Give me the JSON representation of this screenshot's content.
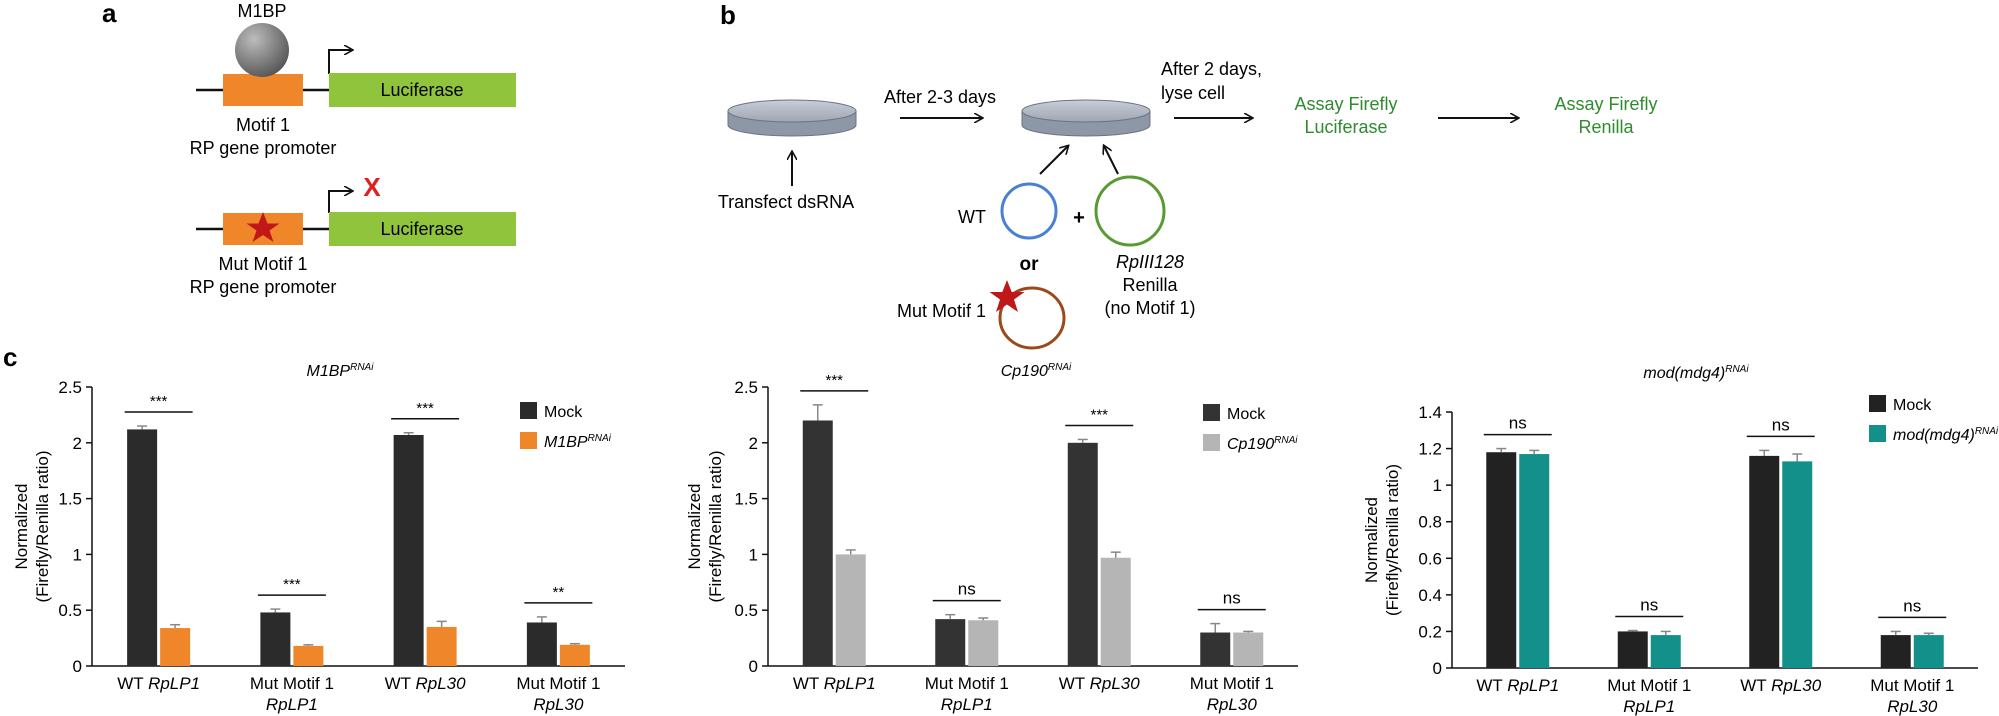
{
  "panel_labels": {
    "a": "a",
    "b": "b",
    "c": "c"
  },
  "panel_a": {
    "protein": "M1BP",
    "reporter": "Luciferase",
    "wt_label_line1": "Motif 1",
    "wt_label_line2": "RP gene promoter",
    "mut_label_line1": "Mut Motif 1",
    "mut_label_line2": "RP gene promoter",
    "blocked_mark": "X",
    "colors": {
      "promoter": "#f0862a",
      "luciferase": "#8fc43c",
      "protein": "#777777",
      "blocked": "#e02020",
      "star": "#c01818"
    }
  },
  "panel_b": {
    "step1": "After 2-3 days",
    "step2_line1": "After 2 days,",
    "step2_line2": "lyse cell",
    "assay1_line1": "Assay Firefly",
    "assay1_line2": "Luciferase",
    "assay2_line1": "Assay Firefly",
    "assay2_line2": "Renilla",
    "transfect": "Transfect dsRNA",
    "wt": "WT",
    "plus": "+",
    "or": "or",
    "mut": "Mut Motif 1",
    "renilla_line1": "RpIII128",
    "renilla_line2": "Renilla",
    "renilla_line3": "(no Motif 1)",
    "colors": {
      "assay_text": "#2e8b2e",
      "wt_plasmid": "#4a7fd6",
      "renilla_plasmid": "#5a9a35",
      "mut_plasmid": "#9a4a1a",
      "dish": "#9fa7b6"
    }
  },
  "chart_data": [
    {
      "type": "bar",
      "title_main": "M1BP",
      "title_sup": "RNAi",
      "ylabel_line1": "Normalized",
      "ylabel_line2": "(Firefly/Renilla ratio)",
      "ylim": [
        0,
        2.5
      ],
      "yticks": [
        "0",
        "0.5",
        "1",
        "1.5",
        "2",
        "2.5"
      ],
      "categories": [
        {
          "prefix": "WT ",
          "gene": "RpLP1",
          "line2": ""
        },
        {
          "prefix": "Mut Motif 1",
          "gene": "",
          "line2": "RpLP1"
        },
        {
          "prefix": "WT ",
          "gene": "RpL30",
          "line2": ""
        },
        {
          "prefix": "Mut Motif 1",
          "gene": "",
          "line2": "RpL30"
        }
      ],
      "series": [
        {
          "name": "Mock",
          "name_sup": "",
          "color": "#2b2b2b",
          "values": [
            2.12,
            0.48,
            2.07,
            0.39
          ],
          "errors": [
            0.03,
            0.03,
            0.02,
            0.05
          ]
        },
        {
          "name": "M1BP",
          "name_sup": "RNAi",
          "color": "#f0862a",
          "values": [
            0.34,
            0.18,
            0.35,
            0.19
          ],
          "errors": [
            0.03,
            0.01,
            0.05,
            0.01
          ]
        }
      ],
      "significance": [
        "***",
        "***",
        "***",
        "**"
      ],
      "legend_position": "top-right"
    },
    {
      "type": "bar",
      "title_main": "Cp190",
      "title_sup": "RNAi",
      "ylabel_line1": "Normalized",
      "ylabel_line2": "(Firefly/Renilla ratio)",
      "ylim": [
        0,
        2.5
      ],
      "yticks": [
        "0",
        "0.5",
        "1",
        "1.5",
        "2",
        "2.5"
      ],
      "categories": [
        {
          "prefix": "WT ",
          "gene": "RpLP1",
          "line2": ""
        },
        {
          "prefix": "Mut Motif 1",
          "gene": "",
          "line2": "RpLP1"
        },
        {
          "prefix": "WT ",
          "gene": "RpL30",
          "line2": ""
        },
        {
          "prefix": "Mut Motif 1",
          "gene": "",
          "line2": "RpL30"
        }
      ],
      "series": [
        {
          "name": "Mock",
          "name_sup": "",
          "color": "#333333",
          "values": [
            2.2,
            0.42,
            2.0,
            0.3
          ],
          "errors": [
            0.14,
            0.04,
            0.03,
            0.08
          ]
        },
        {
          "name": "Cp190",
          "name_sup": "RNAi",
          "color": "#b5b5b5",
          "values": [
            1.0,
            0.41,
            0.97,
            0.3
          ],
          "errors": [
            0.04,
            0.02,
            0.05,
            0.01
          ]
        }
      ],
      "significance": [
        "***",
        "ns",
        "***",
        "ns"
      ],
      "legend_position": "top-right"
    },
    {
      "type": "bar",
      "title_main": "mod(mdg4)",
      "title_sup": "RNAi",
      "ylabel_line1": "Normalized",
      "ylabel_line2": "(Firefly/Renilla ratio)",
      "ylim": [
        0,
        1.4
      ],
      "yticks": [
        "0",
        "0.2",
        "0.4",
        "0.6",
        "0.8",
        "1",
        "1.2",
        "1.4"
      ],
      "categories": [
        {
          "prefix": "WT ",
          "gene": "RpLP1",
          "line2": ""
        },
        {
          "prefix": "Mut Motif 1",
          "gene": "",
          "line2": "RpLP1"
        },
        {
          "prefix": "WT ",
          "gene": "RpL30",
          "line2": ""
        },
        {
          "prefix": "Mut Motif 1",
          "gene": "",
          "line2": "RpL30"
        }
      ],
      "series": [
        {
          "name": "Mock",
          "name_sup": "",
          "color": "#222222",
          "values": [
            1.18,
            0.2,
            1.16,
            0.18
          ],
          "errors": [
            0.02,
            0.005,
            0.03,
            0.02
          ]
        },
        {
          "name": "mod(mdg4)",
          "name_sup": "RNAi",
          "color": "#14908a",
          "values": [
            1.17,
            0.18,
            1.13,
            0.18
          ],
          "errors": [
            0.02,
            0.02,
            0.04,
            0.01
          ]
        }
      ],
      "significance": [
        "ns",
        "ns",
        "ns",
        "ns"
      ],
      "legend_position": "top-right"
    }
  ]
}
